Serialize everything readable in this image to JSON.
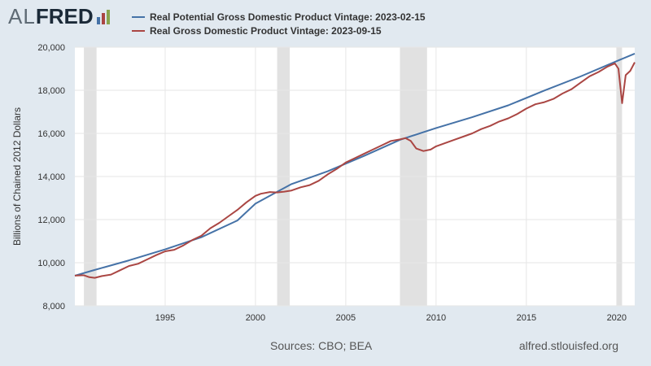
{
  "logo": {
    "al": "AL",
    "fred": "FRED",
    "bar_colors": [
      "#4572a7",
      "#aa4643",
      "#89a54e"
    ],
    "bar_levels": [
      0.5,
      0.8,
      1.0
    ]
  },
  "legend": [
    {
      "label": "Real Potential Gross Domestic Product Vintage: 2023-02-15",
      "color": "#4572a7"
    },
    {
      "label": "Real Gross Domestic Product Vintage: 2023-09-15",
      "color": "#aa4643"
    }
  ],
  "footer": {
    "sources": "Sources: CBO; BEA",
    "url": "alfred.stlouisfed.org"
  },
  "chart_data": {
    "type": "line",
    "ylabel": "Billions of Chained 2012 Dollars",
    "xlim": [
      1990.0,
      2021.0
    ],
    "ylim": [
      8000,
      20000
    ],
    "yticks": [
      8000,
      10000,
      12000,
      14000,
      16000,
      18000,
      20000
    ],
    "ytick_labels": [
      "8,000",
      "10,000",
      "12,000",
      "14,000",
      "16,000",
      "18,000",
      "20,000"
    ],
    "xticks": [
      1995,
      2000,
      2005,
      2010,
      2015,
      2020
    ],
    "xtick_labels": [
      "1995",
      "2000",
      "2005",
      "2010",
      "2015",
      "2020"
    ],
    "grid": true,
    "recessions": [
      [
        1990.5,
        1991.2
      ],
      [
        2001.2,
        2001.9
      ],
      [
        2008.0,
        2009.5
      ],
      [
        2020.0,
        2020.3
      ]
    ],
    "series": [
      {
        "name": "Real Potential Gross Domestic Product Vintage: 2023-02-15",
        "color": "#4572a7",
        "points": [
          [
            1990.0,
            9400
          ],
          [
            1991.0,
            9640
          ],
          [
            1993.0,
            10110
          ],
          [
            1995.0,
            10620
          ],
          [
            1997.0,
            11180
          ],
          [
            1999.0,
            11960
          ],
          [
            2000.0,
            12740
          ],
          [
            2001.0,
            13200
          ],
          [
            2002.0,
            13650
          ],
          [
            2004.0,
            14240
          ],
          [
            2006.0,
            14950
          ],
          [
            2008.0,
            15700
          ],
          [
            2010.0,
            16250
          ],
          [
            2012.0,
            16750
          ],
          [
            2014.0,
            17300
          ],
          [
            2016.0,
            17990
          ],
          [
            2018.0,
            18640
          ],
          [
            2020.0,
            19350
          ],
          [
            2021.0,
            19700
          ]
        ]
      },
      {
        "name": "Real Gross Domestic Product Vintage: 2023-09-15",
        "color": "#aa4643",
        "points": [
          [
            1990.0,
            9400
          ],
          [
            1990.5,
            9420
          ],
          [
            1990.8,
            9330
          ],
          [
            1991.1,
            9300
          ],
          [
            1991.5,
            9380
          ],
          [
            1992.0,
            9450
          ],
          [
            1992.5,
            9650
          ],
          [
            1993.0,
            9850
          ],
          [
            1993.5,
            9950
          ],
          [
            1994.0,
            10150
          ],
          [
            1994.5,
            10350
          ],
          [
            1995.0,
            10530
          ],
          [
            1995.5,
            10600
          ],
          [
            1996.0,
            10800
          ],
          [
            1996.5,
            11050
          ],
          [
            1997.0,
            11250
          ],
          [
            1997.5,
            11600
          ],
          [
            1998.0,
            11850
          ],
          [
            1998.5,
            12150
          ],
          [
            1999.0,
            12450
          ],
          [
            1999.5,
            12800
          ],
          [
            2000.0,
            13100
          ],
          [
            2000.3,
            13200
          ],
          [
            2000.8,
            13280
          ],
          [
            2001.2,
            13260
          ],
          [
            2001.6,
            13300
          ],
          [
            2002.0,
            13350
          ],
          [
            2002.5,
            13500
          ],
          [
            2003.0,
            13600
          ],
          [
            2003.5,
            13800
          ],
          [
            2004.0,
            14100
          ],
          [
            2004.5,
            14350
          ],
          [
            2005.0,
            14650
          ],
          [
            2005.5,
            14850
          ],
          [
            2006.0,
            15050
          ],
          [
            2006.5,
            15250
          ],
          [
            2007.0,
            15450
          ],
          [
            2007.5,
            15650
          ],
          [
            2008.0,
            15720
          ],
          [
            2008.3,
            15780
          ],
          [
            2008.6,
            15650
          ],
          [
            2008.9,
            15300
          ],
          [
            2009.3,
            15180
          ],
          [
            2009.7,
            15250
          ],
          [
            2010.0,
            15400
          ],
          [
            2010.5,
            15550
          ],
          [
            2011.0,
            15700
          ],
          [
            2011.5,
            15850
          ],
          [
            2012.0,
            16000
          ],
          [
            2012.5,
            16200
          ],
          [
            2013.0,
            16350
          ],
          [
            2013.5,
            16550
          ],
          [
            2014.0,
            16700
          ],
          [
            2014.5,
            16900
          ],
          [
            2015.0,
            17150
          ],
          [
            2015.5,
            17350
          ],
          [
            2016.0,
            17450
          ],
          [
            2016.5,
            17600
          ],
          [
            2017.0,
            17850
          ],
          [
            2017.5,
            18050
          ],
          [
            2018.0,
            18350
          ],
          [
            2018.5,
            18650
          ],
          [
            2019.0,
            18850
          ],
          [
            2019.5,
            19100
          ],
          [
            2019.9,
            19250
          ],
          [
            2020.1,
            19000
          ],
          [
            2020.3,
            17400
          ],
          [
            2020.5,
            18700
          ],
          [
            2020.75,
            18900
          ],
          [
            2021.0,
            19300
          ]
        ]
      }
    ]
  }
}
